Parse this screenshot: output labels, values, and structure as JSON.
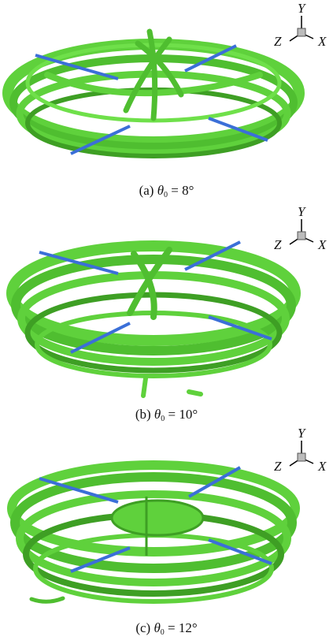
{
  "panels": [
    {
      "label": "(a)",
      "symbol": "θ",
      "subscript": "0",
      "value": "= 8°"
    },
    {
      "label": "(b)",
      "symbol": "θ",
      "subscript": "0",
      "value": "= 10°"
    },
    {
      "label": "(c)",
      "symbol": "θ",
      "subscript": "0",
      "value": "= 12°"
    }
  ],
  "axis_labels": {
    "y": "Y",
    "z": "Z",
    "x": "X"
  },
  "colors": {
    "vortex": "#5fd13c",
    "vortex_dark": "#3e9f24",
    "blade": "#3b6fd8"
  }
}
